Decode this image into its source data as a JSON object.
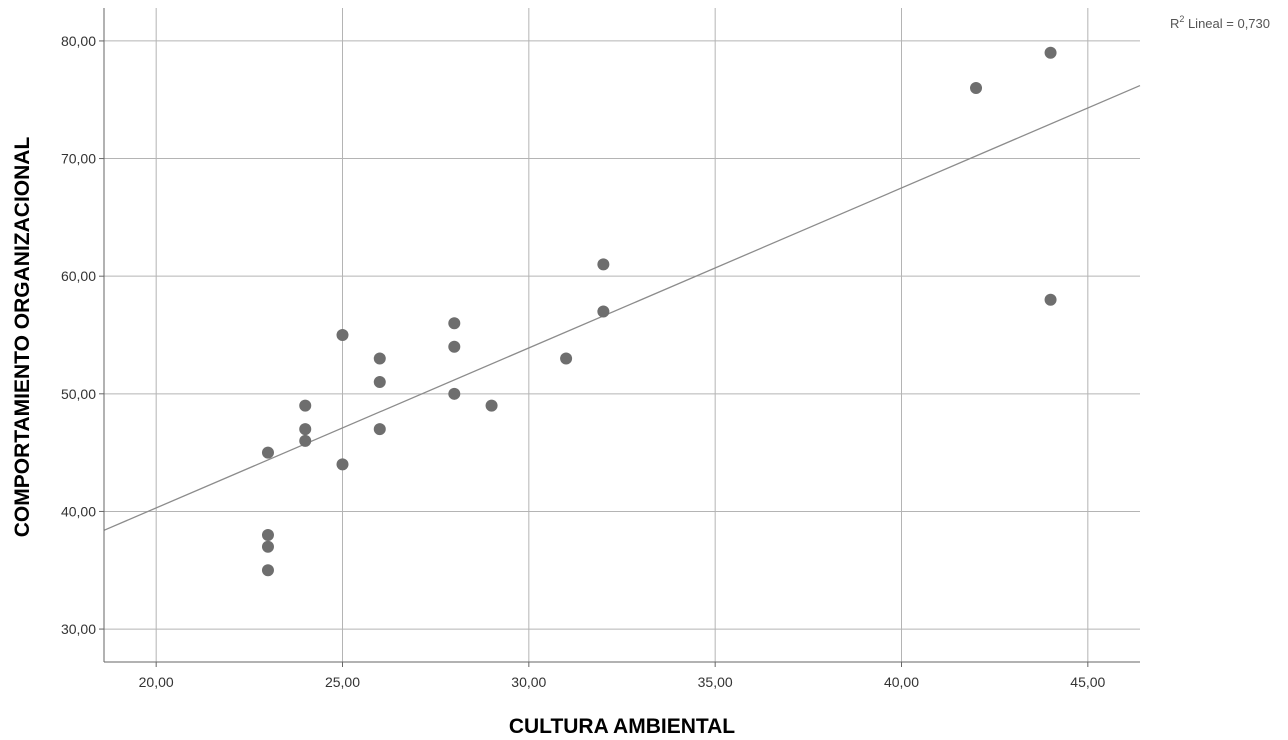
{
  "chart_data": {
    "type": "scatter",
    "title": "",
    "xlabel": "CULTURA AMBIENTAL",
    "ylabel": "COMPORTAMIENTO ORGANIZACIONAL",
    "xlim": [
      18.6,
      46.4
    ],
    "ylim": [
      27.2,
      82.8
    ],
    "x_ticks": [
      20,
      25,
      30,
      35,
      40,
      45
    ],
    "x_tick_labels": [
      "20,00",
      "25,00",
      "30,00",
      "35,00",
      "40,00",
      "45,00"
    ],
    "y_ticks": [
      30,
      40,
      50,
      60,
      70,
      80
    ],
    "y_tick_labels": [
      "30,00",
      "40,00",
      "50,00",
      "60,00",
      "70,00",
      "80,00"
    ],
    "grid": true,
    "points": [
      {
        "x": 23,
        "y": 45
      },
      {
        "x": 23,
        "y": 38
      },
      {
        "x": 23,
        "y": 37
      },
      {
        "x": 23,
        "y": 35
      },
      {
        "x": 24,
        "y": 49
      },
      {
        "x": 24,
        "y": 47
      },
      {
        "x": 24,
        "y": 46
      },
      {
        "x": 25,
        "y": 55
      },
      {
        "x": 25,
        "y": 44
      },
      {
        "x": 26,
        "y": 53
      },
      {
        "x": 26,
        "y": 51
      },
      {
        "x": 26,
        "y": 47
      },
      {
        "x": 28,
        "y": 56
      },
      {
        "x": 28,
        "y": 54
      },
      {
        "x": 28,
        "y": 50
      },
      {
        "x": 29,
        "y": 49
      },
      {
        "x": 31,
        "y": 53
      },
      {
        "x": 32,
        "y": 61
      },
      {
        "x": 32,
        "y": 57
      },
      {
        "x": 42,
        "y": 76
      },
      {
        "x": 44,
        "y": 79
      },
      {
        "x": 44,
        "y": 58
      }
    ],
    "fit_line": {
      "intercept": 13.1,
      "slope": 1.36
    },
    "r2_annotation": {
      "prefix": "R",
      "superscript": "2",
      "text": " Lineal = 0,730"
    },
    "colors": {
      "points": "#6e6e6e",
      "fit_line": "#8c8c8c",
      "grid": "#b4b4b4",
      "axis": "#666666"
    }
  }
}
